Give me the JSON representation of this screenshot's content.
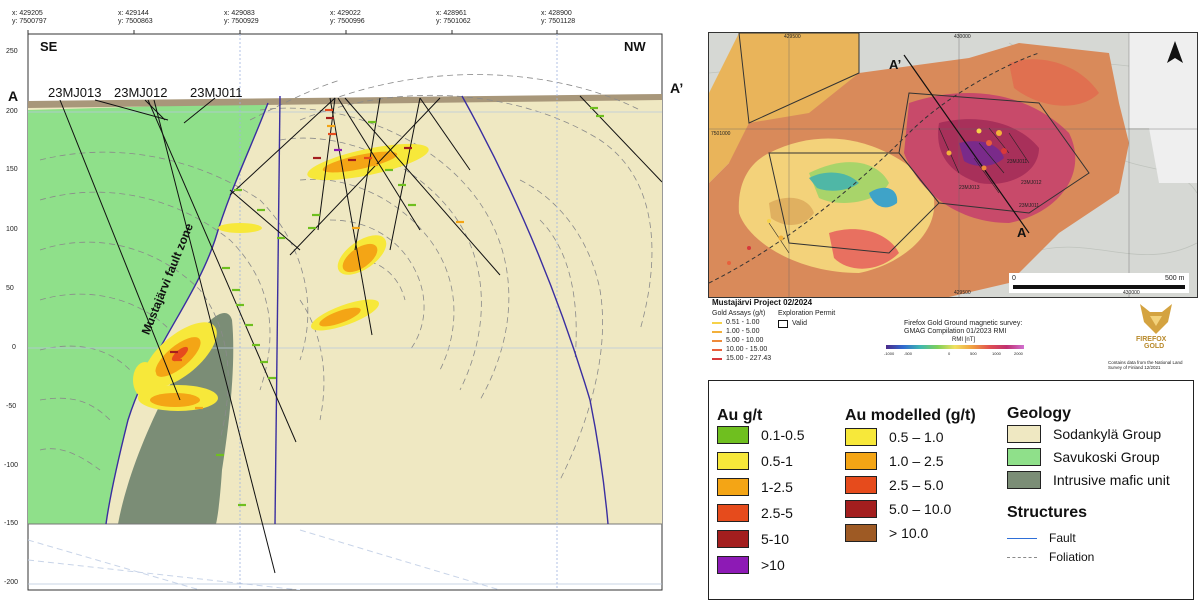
{
  "section": {
    "coords": [
      {
        "x": "x: 429205",
        "y": "y: 7500797"
      },
      {
        "x": "x: 429144",
        "y": "y: 7500863"
      },
      {
        "x": "x: 429083",
        "y": "y: 7500929"
      },
      {
        "x": "x: 429022",
        "y": "y: 7500996"
      },
      {
        "x": "x: 428961",
        "y": "y: 7501062"
      },
      {
        "x": "x: 428900",
        "y": "y: 7501128"
      }
    ],
    "elev_ticks": [
      "250",
      "200",
      "150",
      "100",
      "50",
      "0",
      "-50",
      "-100",
      "-150",
      "-200"
    ],
    "label_se": "SE",
    "label_nw": "NW",
    "label_a": "A",
    "label_a_prime": "A’",
    "holes": [
      "23MJ013",
      "23MJ012",
      "23MJ011"
    ],
    "fault_label": "Mustajärvi fault zone"
  },
  "map": {
    "grid_top": [
      "429500",
      "430000"
    ],
    "grid_bottom": [
      "429500",
      "430000"
    ],
    "grid_left": "7501000",
    "section_a": "A",
    "section_a_prime": "A’",
    "holes": [
      "23MJ011",
      "23MJ012",
      "23MJ013",
      "23MJ011"
    ],
    "scale_start": "0",
    "scale_end": "500 m"
  },
  "map_legend": {
    "project": "Mustajärvi Project 02/2024",
    "gold_title": "Gold Assays (g/t)",
    "gold_items": [
      "0.51 - 1.00",
      "1.00 - 5.00",
      "5.00 - 10.00",
      "10.00 - 15.00",
      "15.00 - 227.43"
    ],
    "gold_colors": [
      "#f6d24a",
      "#f3b03a",
      "#ee8a3a",
      "#e8603c",
      "#d8383a"
    ],
    "permit_title": "Exploration Permit",
    "permit_item": "Valid",
    "survey_line1": "Firefox   Gold   Ground   magnetic   survey:",
    "survey_line2": "GMAG Compilation 01/2023 RMI",
    "rmi_label": "RMI [nT]",
    "rmi_ticks": [
      "-1000",
      "-500",
      "0",
      "500",
      "1000",
      "2000"
    ],
    "brand1": "FIREFOX",
    "brand2": "GOLD",
    "credit": "Contains data from the National Land Survey of Finland 12/2021"
  },
  "legend": {
    "au_title": "Au g/t",
    "au_items": [
      {
        "label": "0.1-0.5",
        "color": "#6fbf1f"
      },
      {
        "label": "0.5-1",
        "color": "#f7e83a"
      },
      {
        "label": "1-2.5",
        "color": "#f4a515"
      },
      {
        "label": "2.5-5",
        "color": "#e64b1c"
      },
      {
        "label": "5-10",
        "color": "#a31e1e"
      },
      {
        "label": ">10",
        "color": "#8d1ab5"
      }
    ],
    "model_title": "Au modelled (g/t)",
    "model_items": [
      {
        "label": "0.5 – 1.0",
        "color": "#f7e83a"
      },
      {
        "label": "1.0 – 2.5",
        "color": "#f4a515"
      },
      {
        "label": "2.5 – 5.0",
        "color": "#e64b1c"
      },
      {
        "label": "5.0 – 10.0",
        "color": "#a31e1e"
      },
      {
        "label": "> 10.0",
        "color": "#9e5a24"
      }
    ],
    "geology_title": "Geology",
    "geology_items": [
      {
        "label": "Sodankylä Group",
        "color": "#efe8c2"
      },
      {
        "label": "Savukoski Group",
        "color": "#8fe08a"
      },
      {
        "label": "Intrusive mafic unit",
        "color": "#7b8d76"
      }
    ],
    "structures_title": "Structures",
    "structure_items": [
      "Fault",
      "Foliation"
    ],
    "colors": {
      "fault": "#2e6fd8",
      "foliation": "#8a8a8a"
    }
  }
}
